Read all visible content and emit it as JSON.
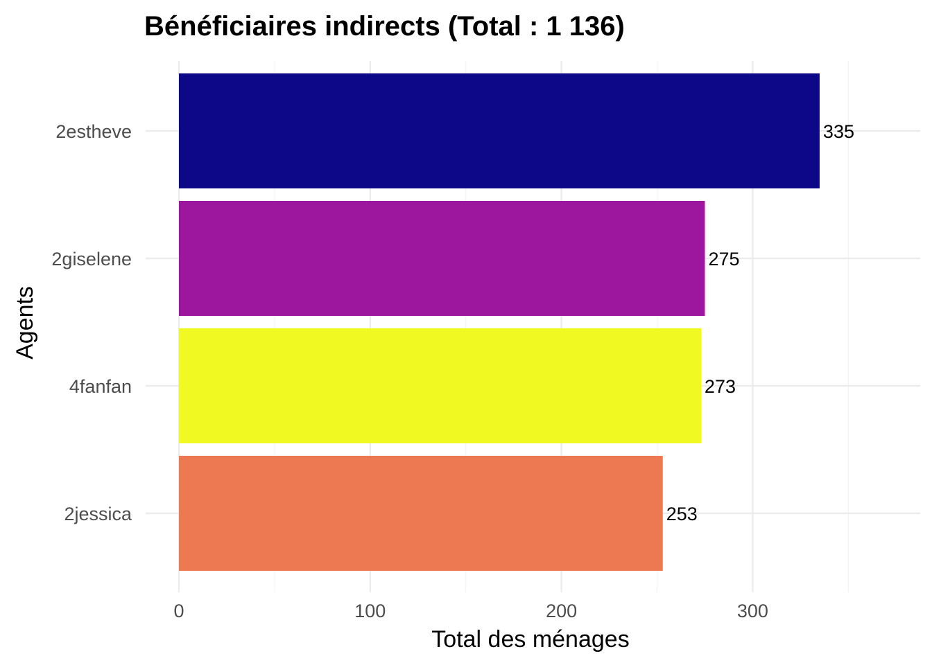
{
  "chart_data": {
    "type": "bar",
    "orientation": "horizontal",
    "title": "Bénéficiaires indirects (Total : 1 136)",
    "xlabel": "Total des ménages",
    "ylabel": "Agents",
    "categories": [
      "2estheve",
      "2giselene",
      "4fanfan",
      "2jessica"
    ],
    "values": [
      335,
      275,
      273,
      253
    ],
    "colors": [
      "#0d0887",
      "#9c179e",
      "#f0f921",
      "#ed7953"
    ],
    "data_labels": [
      "335",
      "275",
      "273",
      "253"
    ],
    "xlim": [
      0,
      360
    ],
    "x_ticks": [
      0,
      100,
      200,
      300
    ],
    "x_tick_labels": [
      "0",
      "100",
      "200",
      "300"
    ],
    "grid": true,
    "legend": "none"
  }
}
